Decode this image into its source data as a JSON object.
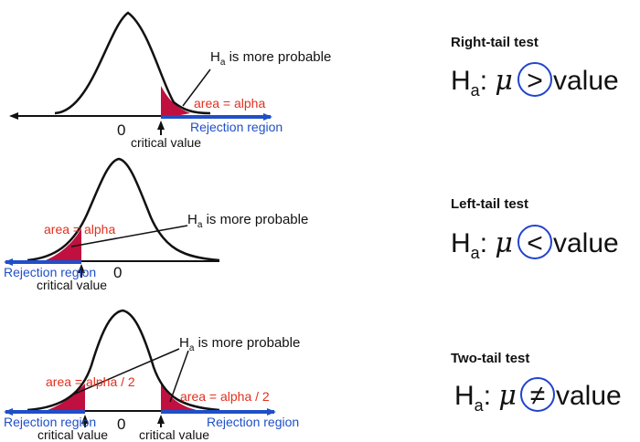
{
  "colors": {
    "tail_fill": "#c0103f",
    "red_text": "#e0301e",
    "blue": "#1f4fc8",
    "ink": "#111111",
    "circle": "#2244cc"
  },
  "common": {
    "ha_letter": "H",
    "ha_subscript": "a",
    "more_probable_rest": " is more probable",
    "rejection_region": "Rejection region",
    "critical_value": "critical value",
    "zero": "0",
    "mu": "μ",
    "colon": ":",
    "value_word": "value"
  },
  "panels": [
    {
      "title": "Right-tail test",
      "operator": ">",
      "area_label": "area = alpha"
    },
    {
      "title": "Left-tail test",
      "operator": "<",
      "area_label": "area = alpha"
    },
    {
      "title": "Two-tail test",
      "operator": "≠",
      "area_label_left": "area = alpha / 2",
      "area_label_right": "area = alpha / 2"
    }
  ]
}
